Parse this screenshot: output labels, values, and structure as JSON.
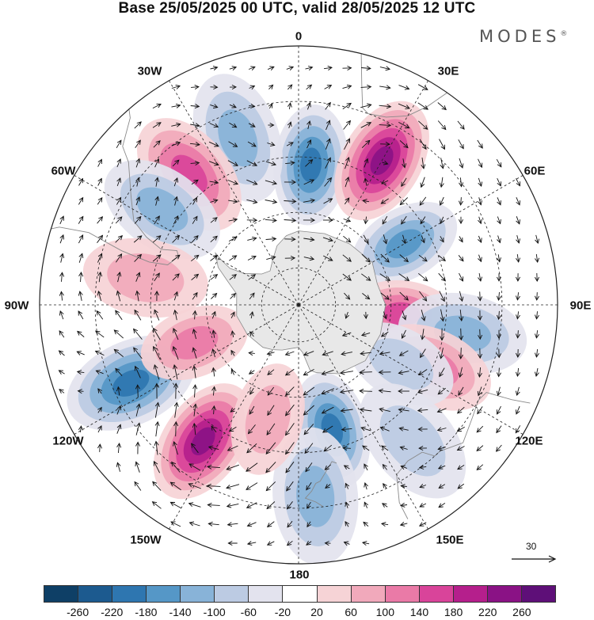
{
  "title": "Base 25/05/2025 00 UTC, valid 28/05/2025 12 UTC",
  "brand": {
    "text": "MODES",
    "mark": "®"
  },
  "longitude_labels": {
    "top": "0",
    "top_left": "30W",
    "top_right": "30E",
    "upper_left": "60W",
    "upper_right": "60E",
    "left": "90W",
    "right": "90E",
    "lower_left": "120W",
    "lower_right": "120E",
    "bottom_left": "150W",
    "bottom_right": "150E",
    "bottom": "180"
  },
  "vector_scale": {
    "label": "30"
  },
  "colors": {
    "ocean_bg": "#ffffff",
    "antarctica": "#e8e8e8",
    "land_outline": "#8a8a8a"
  },
  "colorbar": {
    "colors": [
      "#0e3f66",
      "#1c5a8f",
      "#2e76b0",
      "#5597c7",
      "#88b3d8",
      "#bccbe3",
      "#e3e3ee",
      "#ffffff",
      "#f6d3d6",
      "#f1a9bb",
      "#ea7aa7",
      "#d9449a",
      "#b51f8c",
      "#8a1285",
      "#5e0f78"
    ],
    "ticks": [
      "-260",
      "-220",
      "-180",
      "-140",
      "-100",
      "-60",
      "-20",
      "20",
      "60",
      "100",
      "140",
      "180",
      "220",
      "260"
    ]
  },
  "map_features": {
    "anomaly_centers": [
      {
        "lon": 5,
        "lat": -52,
        "value": -190
      },
      {
        "lon": 30,
        "lat": -45,
        "value": 230
      },
      {
        "lon": -20,
        "lat": -42,
        "value": -120
      },
      {
        "lon": -40,
        "lat": -44,
        "value": 150
      },
      {
        "lon": -55,
        "lat": -45,
        "value": -120
      },
      {
        "lon": -80,
        "lat": -48,
        "value": 90
      },
      {
        "lon": 60,
        "lat": -57,
        "value": -170
      },
      {
        "lon": 95,
        "lat": -62,
        "value": 160
      },
      {
        "lon": 100,
        "lat": -45,
        "value": -100
      },
      {
        "lon": 115,
        "lat": -50,
        "value": 120
      },
      {
        "lon": 120,
        "lat": -58,
        "value": -70
      },
      {
        "lon": -115,
        "lat": -40,
        "value": -200
      },
      {
        "lon": -110,
        "lat": -60,
        "value": 110
      },
      {
        "lon": -145,
        "lat": -45,
        "value": 230
      },
      {
        "lon": 165,
        "lat": -55,
        "value": -210
      },
      {
        "lon": 175,
        "lat": -38,
        "value": -120
      },
      {
        "lon": -165,
        "lat": -58,
        "value": 90
      },
      {
        "lon": 140,
        "lat": -42,
        "value": -60
      }
    ]
  }
}
